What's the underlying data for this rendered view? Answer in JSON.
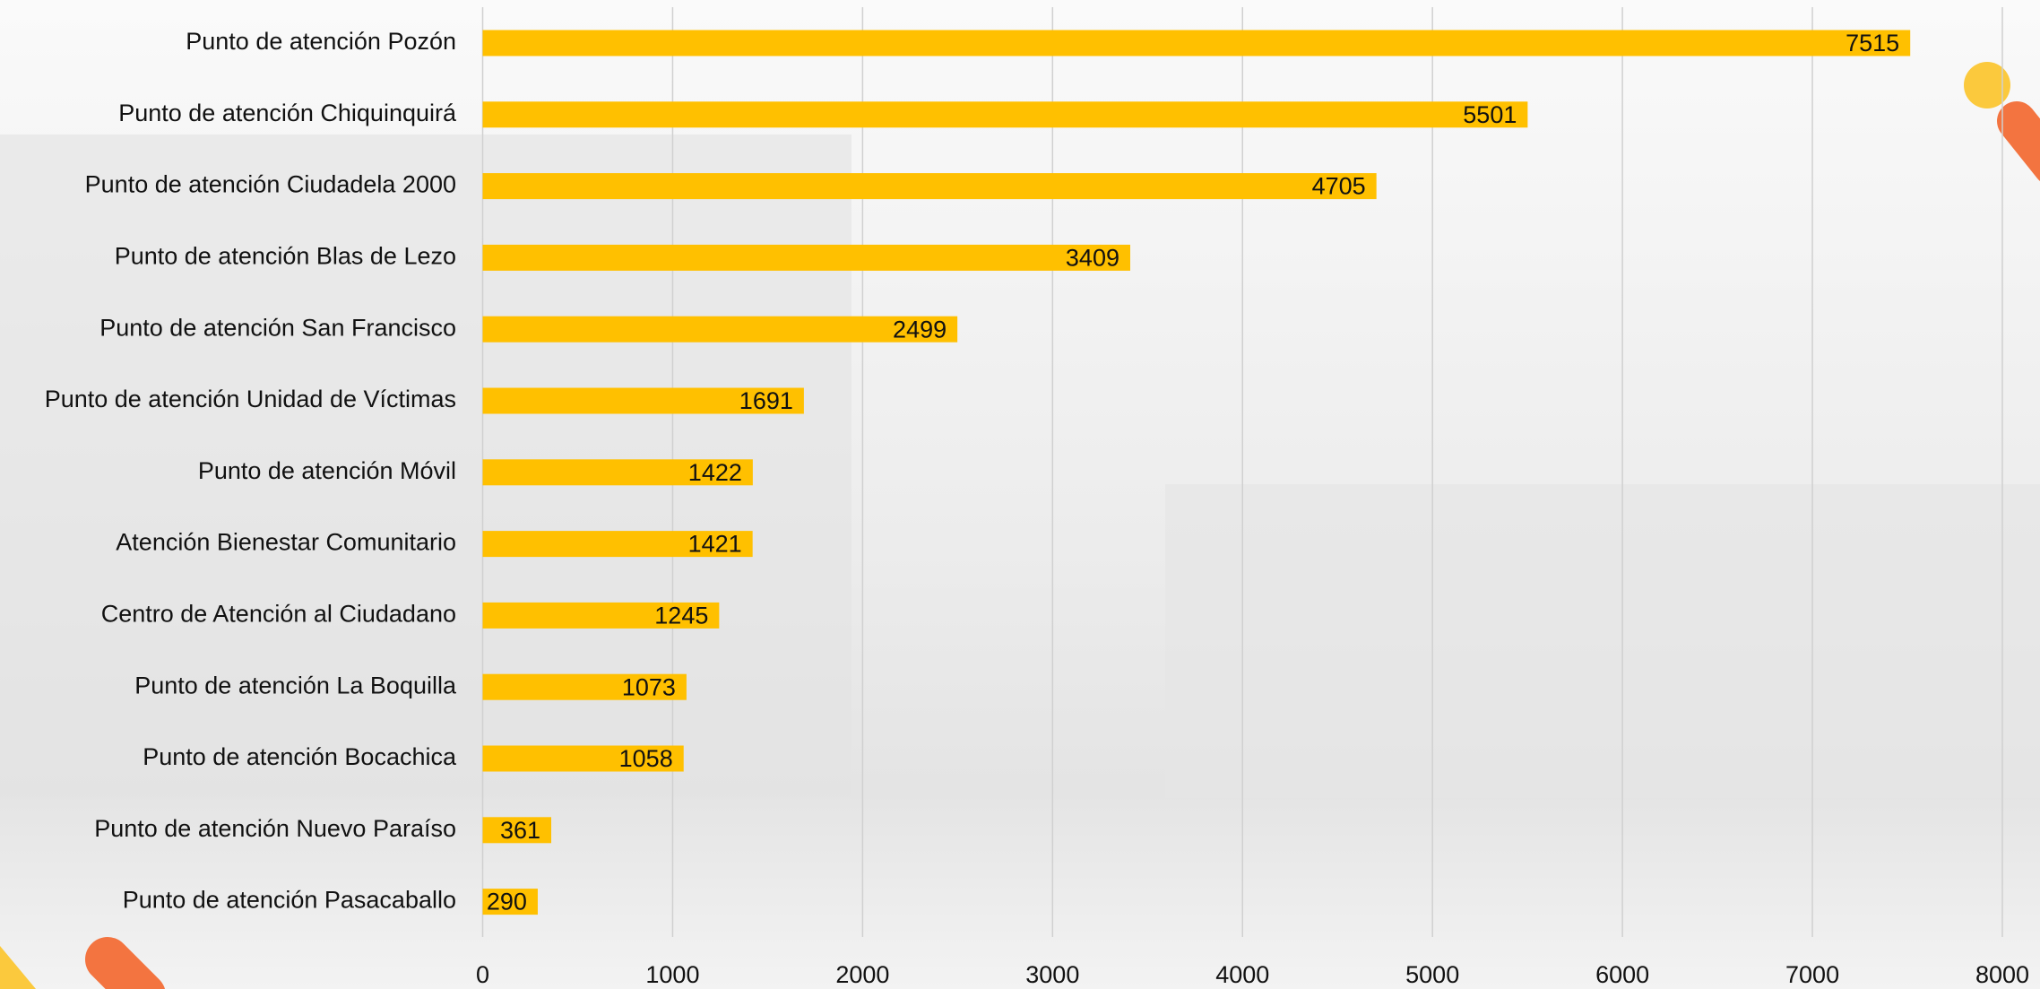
{
  "chart_data": {
    "type": "bar",
    "orientation": "horizontal",
    "categories": [
      "Punto de atención Pozón",
      "Punto de atención Chiquinquirá",
      "Punto de atención Ciudadela 2000",
      "Punto de atención Blas de Lezo",
      "Punto de atención San Francisco",
      "Punto de atención Unidad de Víctimas",
      "Punto de atención Móvil",
      "Atención Bienestar Comunitario",
      "Centro de Atención al Ciudadano",
      "Punto de atención La Boquilla",
      "Punto de atención Bocachica",
      "Punto de atención Nuevo Paraíso",
      "Punto de atención Pasacaballo"
    ],
    "values": [
      7515,
      5501,
      4705,
      3409,
      2499,
      1691,
      1422,
      1421,
      1245,
      1073,
      1058,
      361,
      290
    ],
    "color": "#ffc000",
    "xlim": [
      0,
      8000
    ],
    "xticks": [
      0,
      1000,
      2000,
      3000,
      4000,
      5000,
      6000,
      7000,
      8000
    ],
    "grid": true
  }
}
